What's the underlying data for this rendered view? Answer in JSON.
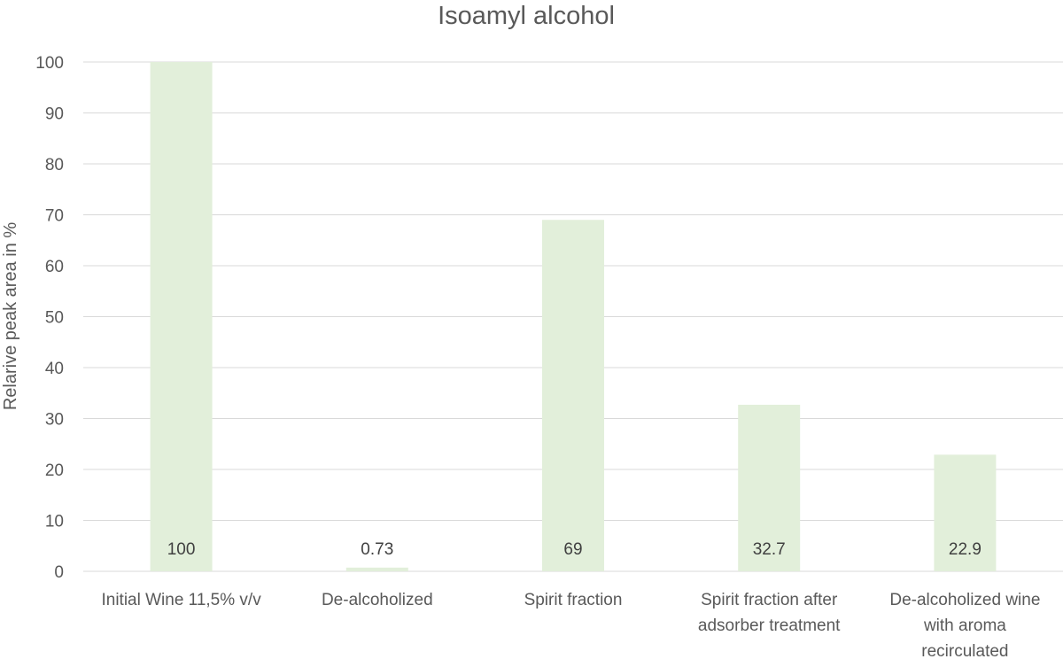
{
  "chart_data": {
    "type": "bar",
    "title": "Isoamyl alcohol",
    "xlabel": "",
    "ylabel": "Relarive peak area in %",
    "ylim": [
      0,
      100
    ],
    "yticks": [
      0,
      10,
      20,
      30,
      40,
      50,
      60,
      70,
      80,
      90,
      100
    ],
    "grid": true,
    "legend": "none",
    "bar_color": "#e2efda",
    "categories": [
      [
        "Initial Wine 11,5% v/v"
      ],
      [
        "De-alcoholized"
      ],
      [
        "Spirit fraction"
      ],
      [
        "Spirit fraction after",
        "adsorber treatment"
      ],
      [
        "De-alcoholized wine",
        "with aroma",
        "recirculated"
      ]
    ],
    "values": [
      100,
      0.73,
      69,
      32.7,
      22.9
    ],
    "data_labels": [
      "100",
      "0.73",
      "69",
      "32.7",
      "22.9"
    ]
  }
}
